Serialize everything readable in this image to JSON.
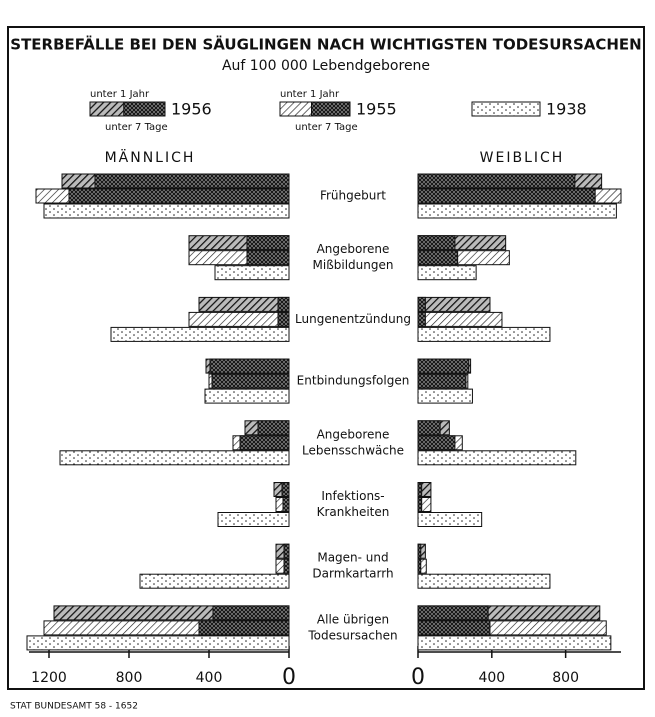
{
  "chart_data": {
    "type": "butterfly-bar",
    "title": "STERBEFÄLLE BEI DEN SÄUGLINGEN NACH WICHTIGSTEN TODESURSACHEN",
    "subtitle": "Auf 100 000 Lebendgeborene",
    "panels": [
      "MÄNNLICH",
      "WEIBLICH"
    ],
    "categories": [
      [
        "Frühgeburt"
      ],
      [
        "Angeborene",
        "Mißbildungen"
      ],
      [
        "Lungenentzündung"
      ],
      [
        "Entbindungsfolgen"
      ],
      [
        "Angeborene",
        "Lebensschwäche"
      ],
      [
        "Infektions-",
        "Krankheiten"
      ],
      [
        "Magen- und",
        "Darmkartarrh"
      ],
      [
        "Alle übrigen",
        "Todesursachen"
      ]
    ],
    "series": [
      {
        "name": "1956",
        "label_total": "unter 1 Jahr",
        "label_sub": "unter 7 Tage",
        "pattern": "dense",
        "male": [
          1135,
          500,
          450,
          415,
          220,
          75,
          65,
          1175
        ],
        "male_first_week": [
          970,
          210,
          55,
          395,
          155,
          35,
          25,
          380
        ],
        "female": [
          995,
          475,
          390,
          285,
          170,
          70,
          40,
          985
        ],
        "female_first_week": [
          850,
          200,
          40,
          275,
          120,
          20,
          15,
          380
        ]
      },
      {
        "name": "1955",
        "label_total": "unter 1 Jahr",
        "label_sub": "unter 7 Tage",
        "pattern": "light",
        "male": [
          1265,
          500,
          500,
          400,
          280,
          65,
          65,
          1225
        ],
        "male_first_week": [
          1100,
          210,
          55,
          385,
          245,
          30,
          25,
          450
        ],
        "female": [
          1100,
          495,
          455,
          270,
          240,
          70,
          45,
          1020
        ],
        "female_first_week": [
          960,
          215,
          40,
          260,
          200,
          20,
          15,
          390
        ]
      },
      {
        "name": "1938",
        "pattern": "dots",
        "male": [
          1225,
          370,
          890,
          420,
          1145,
          355,
          745,
          1310
        ],
        "female": [
          1075,
          315,
          715,
          295,
          855,
          345,
          715,
          1045
        ]
      }
    ],
    "xlim_left": [
      0,
      1300
    ],
    "xticks_left": [
      0,
      400,
      800,
      1200
    ],
    "xlim_right": [
      0,
      1100
    ],
    "xticks_right": [
      0,
      400,
      800
    ],
    "source": "STAT BUNDESAMT 58 - 1652"
  }
}
